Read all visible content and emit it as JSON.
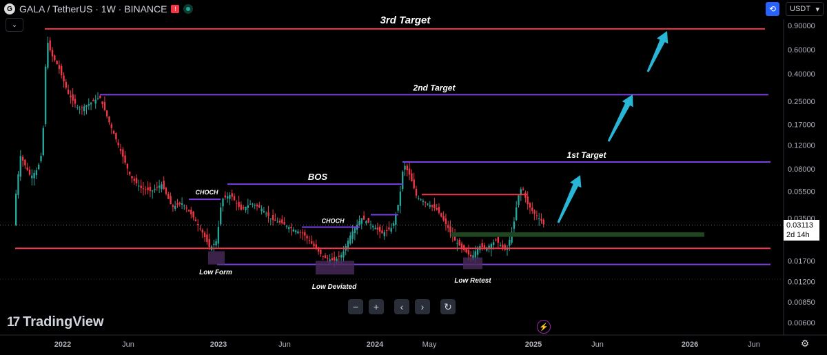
{
  "header": {
    "symbol_line": "GALA / TetherUS · 1W · BINANCE",
    "currency_selector": "USDT"
  },
  "price_label": {
    "value": "0.03113",
    "countdown": "2d 14h"
  },
  "brand": {
    "name": "TradingView",
    "mark": "17"
  },
  "navigation": {
    "zoom_out": "−",
    "zoom_in": "+",
    "scroll_left": "‹",
    "scroll_right": "›",
    "reset": "↻"
  },
  "colors": {
    "up": "#26a69a",
    "down": "#f23645",
    "level_red": "#f23645",
    "level_purple": "#7b3fe4",
    "arrow": "#29b6d6",
    "demand": "#1e4620",
    "box": "#4a2a5a"
  },
  "chart_data": {
    "type": "candlestick",
    "symbol": "GALA/USDT",
    "interval": "1W",
    "y_scale": "log",
    "y_ticks": [
      "0.90000",
      "0.60000",
      "0.40000",
      "0.25000",
      "0.17000",
      "0.12000",
      "0.08000",
      "0.05500",
      "0.03500",
      "0.02500",
      "0.01700",
      "0.01200",
      "0.00850",
      "0.00600"
    ],
    "x_ticks": [
      "2022",
      "Jun",
      "2023",
      "Jun",
      "2024",
      "May",
      "2025",
      "Jun",
      "2026",
      "Jun"
    ],
    "levels": [
      {
        "label": "3rd Target",
        "price": 0.85,
        "color": "red"
      },
      {
        "label": "2nd Target",
        "price": 0.28,
        "color": "purple"
      },
      {
        "label": "1st Target",
        "price": 0.09,
        "color": "purple"
      },
      {
        "label": "BOS",
        "price": 0.062,
        "color": "purple"
      },
      {
        "label": "CHOCH",
        "price": 0.048,
        "color": "purple"
      },
      {
        "label": "CHOCH",
        "price": 0.03,
        "color": "purple"
      },
      {
        "label": "",
        "price": 0.021,
        "color": "red"
      },
      {
        "label": "",
        "price": 0.016,
        "color": "purple"
      }
    ],
    "annotations": [
      "Low Form",
      "Low Deviated",
      "Low Retest"
    ],
    "last_price": 0.03113
  }
}
